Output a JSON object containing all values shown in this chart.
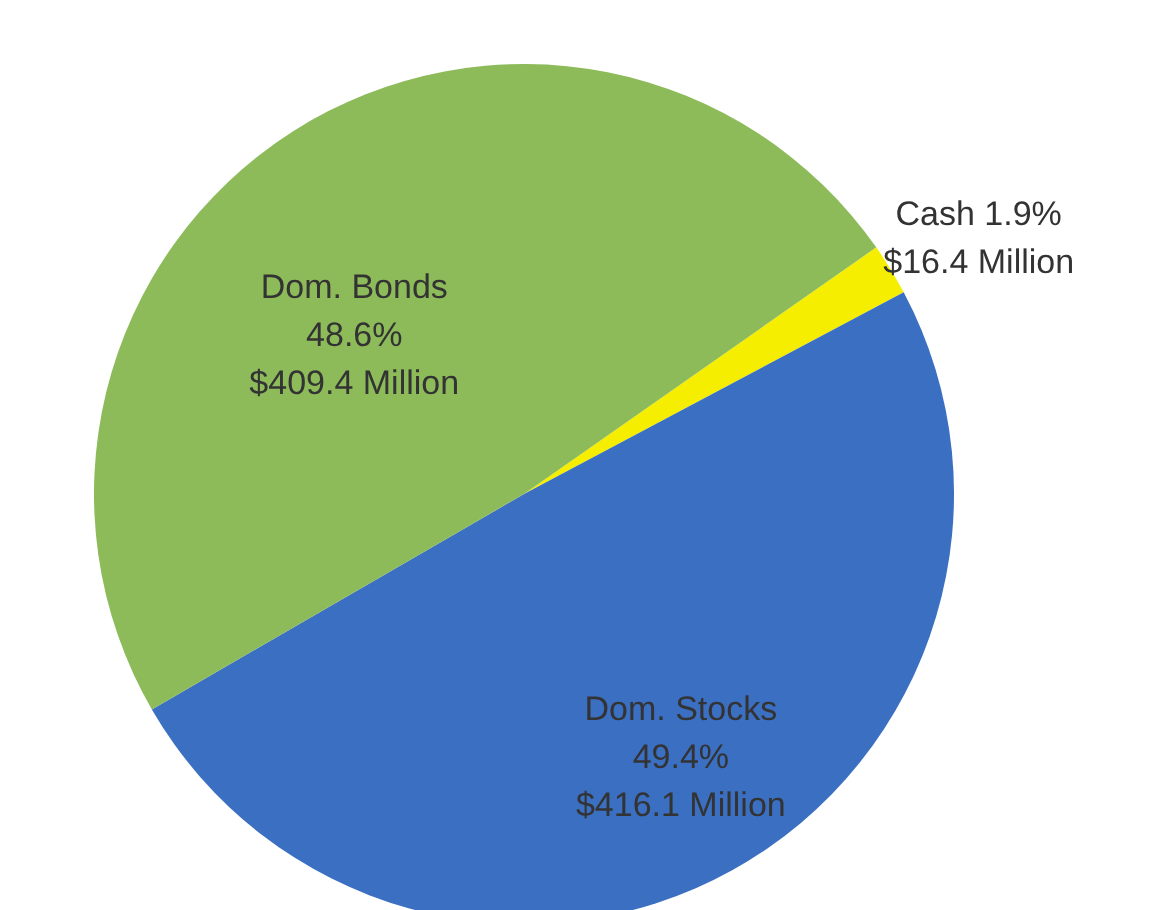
{
  "chart_data": {
    "type": "pie",
    "categories": [
      "Cash",
      "Dom. Stocks",
      "Dom. Bonds"
    ],
    "values": [
      16.4,
      416.1,
      409.4
    ],
    "value_labels": [
      "1.9%\n$16.4 Million",
      "49.4%\n$416.1 Million",
      "48.6%\n$409.4 Million"
    ],
    "colors": [
      "#f5ee00",
      "#3b6fc1",
      "#8dbb5a"
    ]
  }
}
